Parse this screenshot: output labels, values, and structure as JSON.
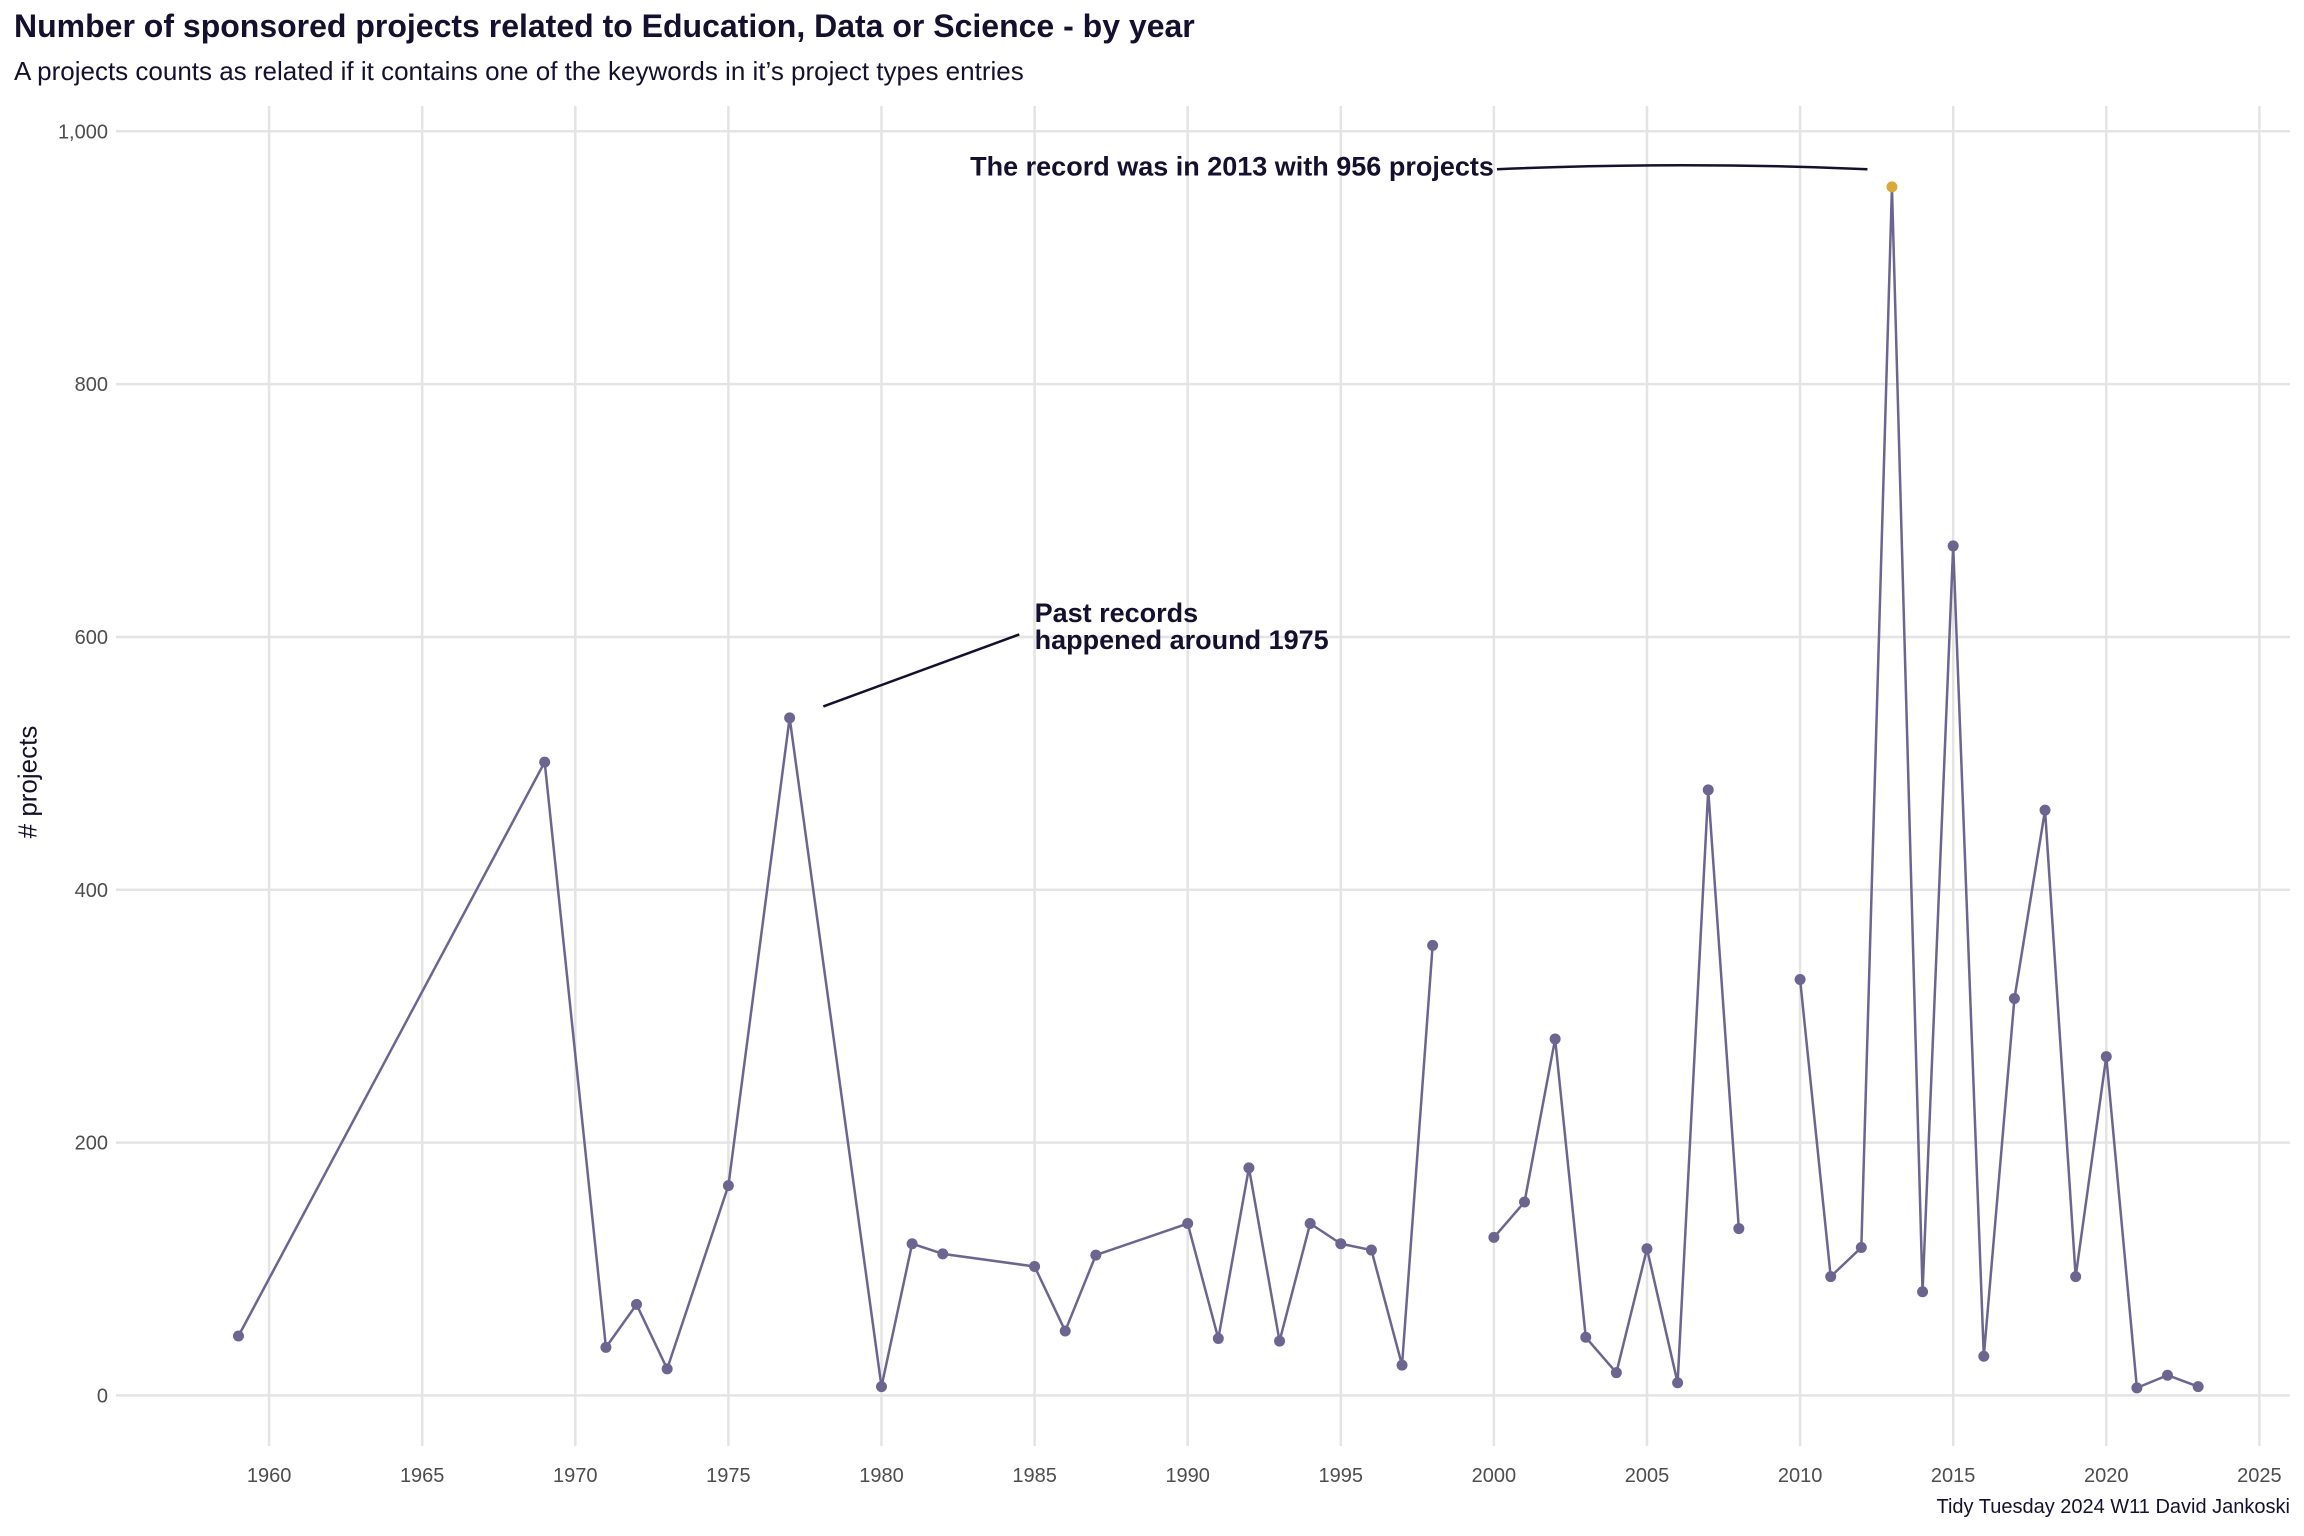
{
  "title": "Number of sponsored projects related to Education, Data or Science - by year",
  "subtitle": "A projects counts as related if it contains one of the keywords in it’s project types entries",
  "caption": "Tidy Tuesday 2024 W11 David Jankoski",
  "colors": {
    "line": "#6b6590",
    "point": "#6b6590",
    "highlight": "#d9a93a",
    "text": "#15102e",
    "grid": "#e4e4e4"
  },
  "chart_data": {
    "type": "line",
    "title": "Number of sponsored projects related to Education, Data or Science - by year",
    "xlabel": "",
    "ylabel": "# projects",
    "xlim": [
      1955,
      2026
    ],
    "ylim": [
      -40,
      1020
    ],
    "x_ticks": [
      1960,
      1965,
      1970,
      1975,
      1980,
      1985,
      1990,
      1995,
      2000,
      2005,
      2010,
      2015,
      2020,
      2025
    ],
    "y_ticks": [
      0,
      200,
      400,
      600,
      800,
      1000
    ],
    "y_tick_labels": [
      "0",
      "200",
      "400",
      "600",
      "800",
      "1,000"
    ],
    "grid": true,
    "segments": [
      {
        "x": [
          1959,
          1969,
          1971,
          1972,
          1973,
          1975,
          1977,
          1980,
          1981,
          1982,
          1985,
          1986,
          1987,
          1990,
          1991,
          1992,
          1993,
          1994,
          1995,
          1996,
          1997,
          1998
        ],
        "y": [
          47,
          501,
          38,
          72,
          21,
          166,
          536,
          7,
          120,
          112,
          102,
          51,
          111,
          136,
          45,
          180,
          43,
          136,
          120,
          115,
          24,
          356
        ]
      },
      {
        "x": [
          2000,
          2001,
          2002,
          2003,
          2004,
          2005,
          2006,
          2007,
          2008
        ],
        "y": [
          125,
          153,
          282,
          46,
          18,
          116,
          10,
          479,
          132
        ]
      },
      {
        "x": [
          2010,
          2011,
          2012,
          2013,
          2014,
          2015,
          2016,
          2017,
          2018,
          2019,
          2020,
          2021,
          2022,
          2023
        ],
        "y": [
          329,
          94,
          117,
          956,
          82,
          672,
          31,
          314,
          463,
          94,
          268,
          6,
          16,
          7
        ]
      }
    ],
    "highlight_point": {
      "x": 2013,
      "y": 956
    },
    "annotations": [
      {
        "lines": [
          "The record was in 2013 with 956 projects"
        ],
        "text_x": 2000,
        "text_y": 965,
        "anchor": "end",
        "curve_from": [
          2000.1,
          970
        ],
        "curve_to": [
          2012.2,
          970
        ]
      },
      {
        "lines": [
          "Past records",
          "happened around 1975"
        ],
        "text_x": 1985,
        "text_y": 612,
        "anchor": "start",
        "curve_from": [
          1984.5,
          602
        ],
        "curve_to": [
          1978.1,
          545
        ]
      }
    ]
  }
}
